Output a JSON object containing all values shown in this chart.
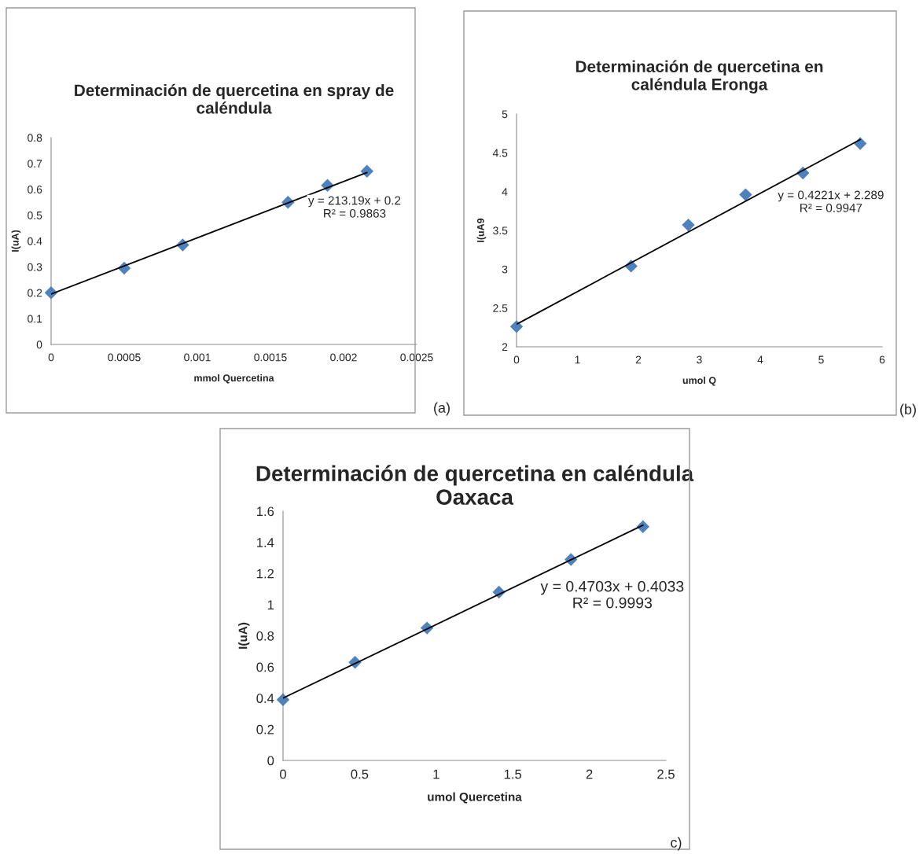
{
  "chart_data": [
    {
      "type": "scatter",
      "title": "Determinación de quercetina en spray de\ncaléndula",
      "xlabel": "mmol Quercetina",
      "ylabel": "I(uA)",
      "xlim": [
        0,
        0.0025
      ],
      "ylim": [
        0,
        0.8
      ],
      "xticks": [
        0,
        0.0005,
        0.001,
        0.0015,
        0.002,
        0.0025
      ],
      "yticks": [
        0,
        0.1,
        0.2,
        0.3,
        0.4,
        0.5,
        0.6,
        0.7,
        0.8
      ],
      "grid": false,
      "legend": false,
      "series": [
        {
          "marker": "diamond",
          "color": "#4f81bd",
          "x": [
            0,
            0.0005,
            0.0009,
            0.00162,
            0.00189,
            0.00216
          ],
          "values": [
            0.2,
            0.295,
            0.385,
            0.55,
            0.615,
            0.67
          ]
        },
        {
          "type": "line",
          "marker": "none",
          "line_style": "solid",
          "color": "#000000",
          "x": [
            0,
            0.00216
          ],
          "values": [
            0.195,
            0.665
          ]
        }
      ],
      "annotations": [
        "y = 213.19x + 0.2\nR² = 0.9863",
        "(a)"
      ]
    },
    {
      "type": "scatter",
      "title": "Determinación de quercetina en\ncaléndula Eronga",
      "xlabel": "umol Q",
      "ylabel": "I(uA9",
      "xlim": [
        0,
        6
      ],
      "ylim": [
        2,
        5
      ],
      "xticks": [
        0,
        1,
        2,
        3,
        4,
        5,
        6
      ],
      "yticks": [
        2,
        2.5,
        3,
        3.5,
        4,
        4.5,
        5
      ],
      "grid": false,
      "legend": false,
      "series": [
        {
          "marker": "diamond",
          "color": "#4f81bd",
          "x": [
            0,
            1.88,
            2.82,
            3.76,
            4.7,
            5.64
          ],
          "values": [
            2.26,
            3.04,
            3.57,
            3.96,
            4.24,
            4.62
          ]
        },
        {
          "type": "line",
          "marker": "none",
          "line_style": "solid",
          "color": "#000000",
          "x": [
            0,
            5.64
          ],
          "values": [
            2.29,
            4.67
          ]
        }
      ],
      "annotations": [
        "y = 0.4221x + 2.289\nR² = 0.9947",
        "(b)"
      ]
    },
    {
      "type": "scatter",
      "title": "Determinación de quercetina en caléndula\nOaxaca",
      "xlabel": "umol Quercetina",
      "ylabel": "I(uA)",
      "xlim": [
        0,
        2.5
      ],
      "ylim": [
        0,
        1.6
      ],
      "xticks": [
        0,
        0.5,
        1,
        1.5,
        2,
        2.5
      ],
      "yticks": [
        0,
        0.2,
        0.4,
        0.6,
        0.8,
        1,
        1.2,
        1.4,
        1.6
      ],
      "grid": false,
      "legend": false,
      "series": [
        {
          "marker": "diamond",
          "color": "#4f81bd",
          "x": [
            0,
            0.47,
            0.94,
            1.41,
            1.88,
            2.35
          ],
          "values": [
            0.39,
            0.63,
            0.85,
            1.08,
            1.29,
            1.5
          ]
        },
        {
          "type": "line",
          "marker": "none",
          "line_style": "solid",
          "color": "#000000",
          "x": [
            0,
            2.35
          ],
          "values": [
            0.4,
            1.51
          ]
        }
      ],
      "annotations": [
        "y = 0.4703x + 0.4033\nR² = 0.9993",
        "c)"
      ]
    }
  ]
}
